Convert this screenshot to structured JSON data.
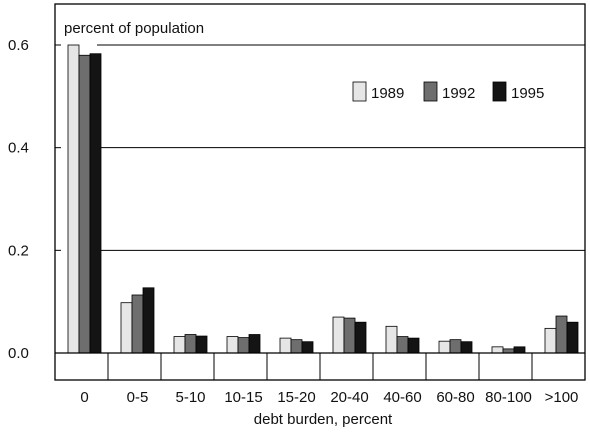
{
  "chart_data": {
    "type": "bar",
    "ylabel": "percent of population",
    "xlabel": "debt burden, percent",
    "categories": [
      "0",
      "0-5",
      "5-10",
      "10-15",
      "15-20",
      "20-40",
      "40-60",
      "60-80",
      "80-100",
      ">100"
    ],
    "ylim": [
      0,
      0.6
    ],
    "yticks": [
      "0.0",
      "0.2",
      "0.4",
      "0.6"
    ],
    "ytick_values": [
      0,
      0.2,
      0.4,
      0.6
    ],
    "grid": "horizontal",
    "legend_position": "top-right",
    "series": [
      {
        "name": "1989",
        "color": "#e6e6e6",
        "values": [
          0.6,
          0.098,
          0.032,
          0.032,
          0.029,
          0.07,
          0.052,
          0.023,
          0.012,
          0.048
        ]
      },
      {
        "name": "1992",
        "color": "#6e6e6e",
        "values": [
          0.58,
          0.113,
          0.036,
          0.03,
          0.026,
          0.068,
          0.032,
          0.026,
          0.008,
          0.072
        ]
      },
      {
        "name": "1995",
        "color": "#141414",
        "values": [
          0.583,
          0.127,
          0.033,
          0.036,
          0.022,
          0.06,
          0.029,
          0.022,
          0.012,
          0.06
        ]
      }
    ]
  }
}
